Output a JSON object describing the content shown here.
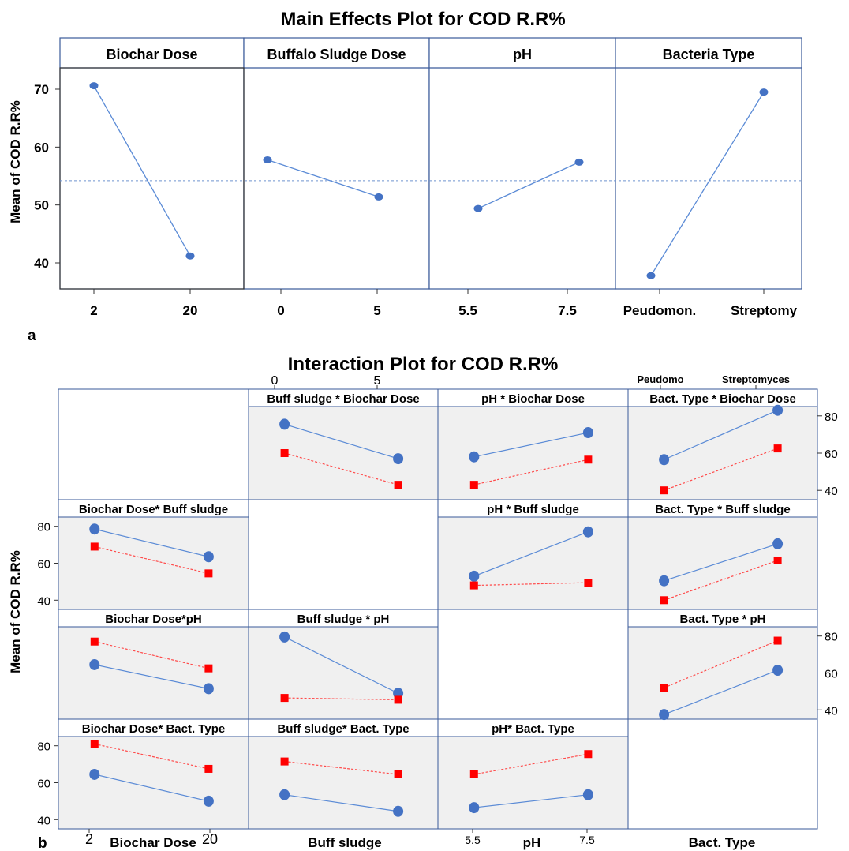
{
  "colors": {
    "blue_marker": "#4472c4",
    "blue_line": "#5b8bd6",
    "red_marker": "#ff0000",
    "red_line": "#ff4a4a",
    "frame": "#3a5a9a",
    "panel_shade": "#f0f0f0",
    "mean_line": "#6f93cf"
  },
  "panel_label_a": "a",
  "panel_label_b": "b",
  "chart_data": [
    {
      "type": "line",
      "title": "Main Effects Plot for COD R.R%",
      "ylabel": "Mean of COD R.R%",
      "ylim": [
        35,
        73
      ],
      "yticks": [
        40,
        50,
        60,
        70
      ],
      "grand_mean": 54.2,
      "panels": [
        {
          "factor": "Biochar Dose",
          "levels": [
            "2",
            "20"
          ],
          "values": [
            70.6,
            41.2
          ]
        },
        {
          "factor": "Buffalo Sludge Dose",
          "levels": [
            "0",
            "5"
          ],
          "values": [
            57.8,
            51.4
          ]
        },
        {
          "factor": "pH",
          "levels": [
            "5.5",
            "7.5"
          ],
          "values": [
            49.4,
            57.4
          ]
        },
        {
          "factor": "Bacteria Type",
          "levels": [
            "Peudomon.",
            "Streptomy"
          ],
          "values": [
            37.8,
            69.5
          ]
        }
      ]
    },
    {
      "type": "line",
      "title": "Interaction Plot for COD R.R%",
      "ylabel": "Mean of COD R.R%",
      "ylim": [
        35,
        85
      ],
      "yticks": [
        40,
        60,
        80
      ],
      "axis_titles": [
        "Biochar Dose",
        "Buff sludge",
        "pH",
        "Bact. Type"
      ],
      "bottom_ticks": [
        [
          "2",
          "20"
        ],
        [],
        [
          "5.5",
          "7.5"
        ],
        []
      ],
      "top_ticks": [
        [],
        [
          "0",
          "5"
        ],
        [],
        [
          "Peudomo",
          "Streptomyces"
        ]
      ],
      "cells": [
        {
          "row": 0,
          "col": 1,
          "title": "Buff sludge * Biochar Dose",
          "series": [
            {
              "values": [
                75.5,
                57.0
              ]
            },
            {
              "values": [
                60.0,
                43.0
              ]
            }
          ]
        },
        {
          "row": 0,
          "col": 2,
          "title": "pH * Biochar Dose",
          "series": [
            {
              "values": [
                58.0,
                71.0
              ]
            },
            {
              "values": [
                43.0,
                56.5
              ]
            }
          ]
        },
        {
          "row": 0,
          "col": 3,
          "title": "Bact. Type * Biochar Dose",
          "series": [
            {
              "values": [
                56.5,
                83.0
              ]
            },
            {
              "values": [
                40.0,
                62.5
              ]
            }
          ]
        },
        {
          "row": 1,
          "col": 0,
          "title": "Biochar Dose* Buff sludge",
          "series": [
            {
              "values": [
                78.5,
                63.5
              ]
            },
            {
              "values": [
                69.0,
                54.5
              ]
            }
          ]
        },
        {
          "row": 1,
          "col": 2,
          "title": "pH * Buff sludge",
          "series": [
            {
              "values": [
                53.0,
                77.0
              ]
            },
            {
              "values": [
                48.0,
                49.5
              ]
            }
          ]
        },
        {
          "row": 1,
          "col": 3,
          "title": "Bact. Type * Buff sludge",
          "series": [
            {
              "values": [
                50.5,
                70.5
              ]
            },
            {
              "values": [
                40.0,
                61.5
              ]
            }
          ]
        },
        {
          "row": 2,
          "col": 0,
          "title": "Biochar Dose*pH",
          "series": [
            {
              "values": [
                64.5,
                51.5
              ]
            },
            {
              "values": [
                77.0,
                62.5
              ]
            }
          ]
        },
        {
          "row": 2,
          "col": 1,
          "title": "Buff sludge * pH",
          "series": [
            {
              "values": [
                79.5,
                49.0
              ]
            },
            {
              "values": [
                46.5,
                45.5
              ]
            }
          ]
        },
        {
          "row": 2,
          "col": 3,
          "title": "Bact. Type * pH",
          "series": [
            {
              "values": [
                37.5,
                61.5
              ]
            },
            {
              "values": [
                52.0,
                77.5
              ]
            }
          ]
        },
        {
          "row": 3,
          "col": 0,
          "title": "Biochar Dose* Bact. Type",
          "series": [
            {
              "values": [
                64.5,
                50.0
              ]
            },
            {
              "values": [
                81.0,
                67.5
              ]
            }
          ]
        },
        {
          "row": 3,
          "col": 1,
          "title": "Buff sludge* Bact. Type",
          "series": [
            {
              "values": [
                53.5,
                44.5
              ]
            },
            {
              "values": [
                71.5,
                64.5
              ]
            }
          ]
        },
        {
          "row": 3,
          "col": 2,
          "title": "pH* Bact. Type",
          "series": [
            {
              "values": [
                46.5,
                53.5
              ]
            },
            {
              "values": [
                64.5,
                75.5
              ]
            }
          ]
        }
      ]
    }
  ]
}
